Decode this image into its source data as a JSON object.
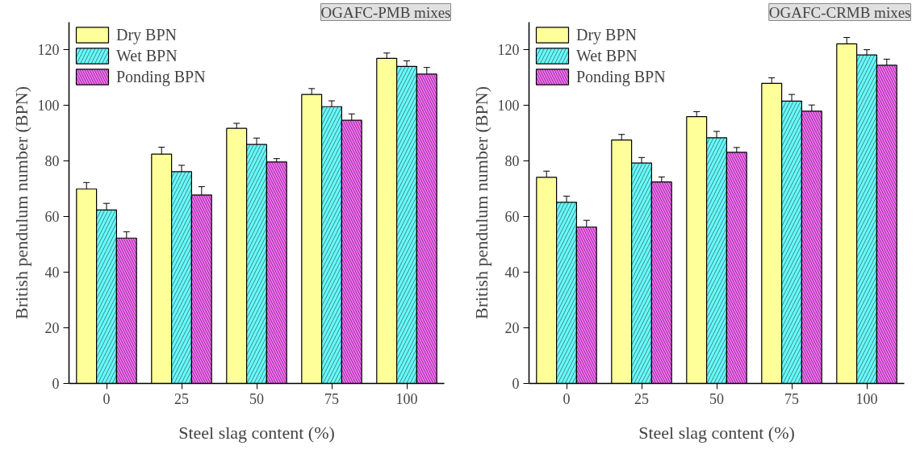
{
  "chart_data": [
    {
      "type": "bar",
      "annotations": [
        "OGAFC-PMB mixes"
      ],
      "xlabel": "Steel slag content (%)",
      "ylabel": "British pendulum number (BPN)",
      "categories": [
        "0",
        "25",
        "50",
        "75",
        "100"
      ],
      "ylim": [
        0,
        130
      ],
      "yticks": [
        0,
        20,
        40,
        60,
        80,
        100,
        120
      ],
      "grid": false,
      "legend": "top left",
      "series": [
        {
          "name": "Dry BPN",
          "color": "#ffff99",
          "values": [
            70,
            82.5,
            91.8,
            104,
            117
          ],
          "errors": [
            2.3,
            2.5,
            1.8,
            2.1,
            1.9
          ]
        },
        {
          "name": "Wet BPN",
          "color": "#66ffff",
          "values": [
            62.4,
            76.2,
            86,
            99.6,
            114.1
          ],
          "errors": [
            2.4,
            2.3,
            2.3,
            2.1,
            2
          ]
        },
        {
          "name": "Ponding BPN",
          "color": "#ff66ff",
          "values": [
            52.3,
            67.8,
            79.7,
            94.7,
            111.3
          ],
          "errors": [
            2.3,
            3,
            1.2,
            2.3,
            2.4
          ]
        }
      ]
    },
    {
      "type": "bar",
      "annotations": [
        "OGAFC-CRMB mixes"
      ],
      "xlabel": "Steel slag content (%)",
      "ylabel": "British pendulum number (BPN)",
      "categories": [
        "0",
        "25",
        "50",
        "75",
        "100"
      ],
      "ylim": [
        0,
        130
      ],
      "yticks": [
        0,
        20,
        40,
        60,
        80,
        100,
        120
      ],
      "grid": false,
      "legend": "top left",
      "series": [
        {
          "name": "Dry BPN",
          "color": "#ffff99",
          "values": [
            74.2,
            87.6,
            96,
            108,
            122.2
          ],
          "errors": [
            2.2,
            2,
            1.8,
            2,
            2.3
          ]
        },
        {
          "name": "Wet BPN",
          "color": "#66ffff",
          "values": [
            65.2,
            79.3,
            88.4,
            101.6,
            118.2
          ],
          "errors": [
            2.2,
            2,
            2.3,
            2.4,
            1.9
          ]
        },
        {
          "name": "Ponding BPN",
          "color": "#ff66ff",
          "values": [
            56.3,
            72.5,
            83.2,
            98,
            114.5
          ],
          "errors": [
            2.4,
            1.8,
            1.7,
            2.2,
            2.2
          ]
        }
      ]
    }
  ]
}
